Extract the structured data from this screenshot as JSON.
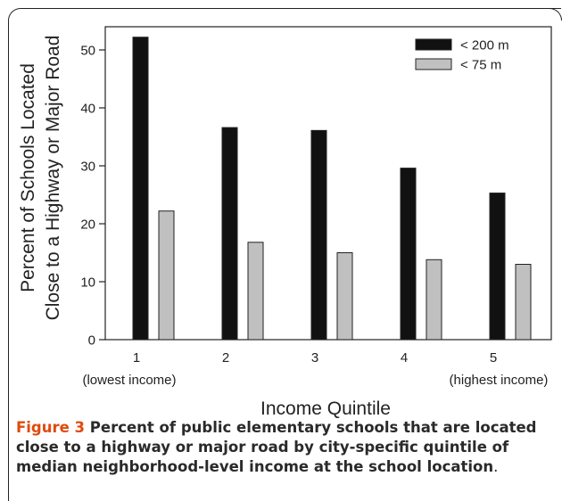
{
  "chart_data": {
    "type": "bar",
    "categories": [
      "1",
      "2",
      "3",
      "4",
      "5"
    ],
    "category_sublabels": [
      "(lowest income)",
      "",
      "",
      "",
      "(highest income)"
    ],
    "series": [
      {
        "name": "< 200 m",
        "values": [
          52.2,
          36.6,
          36.1,
          29.6,
          25.3
        ],
        "color": "#111111"
      },
      {
        "name": "< 75 m",
        "values": [
          22.2,
          16.8,
          15.0,
          13.8,
          13.0
        ],
        "color": "#c0c0c0"
      }
    ],
    "xlabel": "Income Quintile",
    "ylabel_lines": [
      "Percent of Schools Located",
      "Close to a Highway or Major Road"
    ],
    "ylim": [
      0,
      54
    ],
    "yticks": [
      0,
      10,
      20,
      30,
      40,
      50
    ],
    "legend_position": "top-right",
    "grid": false
  },
  "caption": {
    "label": "Figure 3",
    "text": " Percent of public elementary schools that are located close to a highway or major road by city-specific quintile of median neighborhood-level income at the school location",
    "period": "."
  }
}
